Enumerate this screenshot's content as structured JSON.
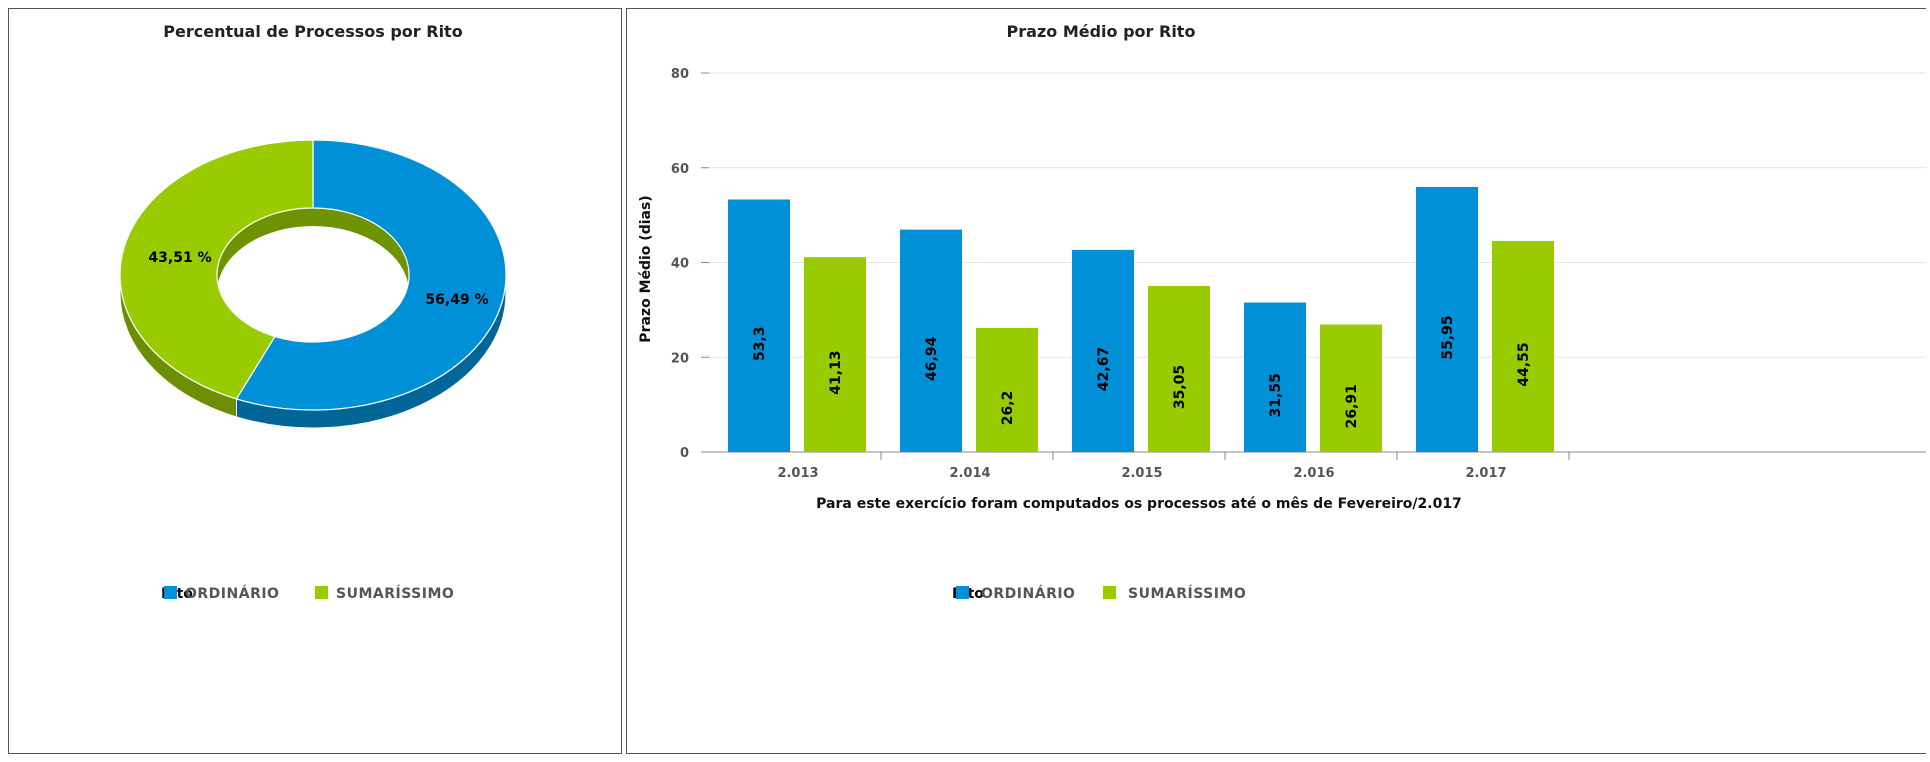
{
  "colors": {
    "ordinario": "#0090d8",
    "sumarissimo": "#99cc00"
  },
  "legend": {
    "title": "Rito",
    "items": [
      {
        "label": "ORDINÁRIO",
        "color": "#0090d8"
      },
      {
        "label": "SUMARÍSSIMO",
        "color": "#99cc00"
      }
    ]
  },
  "chart_data": [
    {
      "type": "pie",
      "title": "Percentual de Processos por Rito",
      "style": "3d-donut",
      "slices": [
        {
          "name": "ORDINÁRIO",
          "value": 56.49,
          "label": "56,49 %",
          "color": "#0090d8"
        },
        {
          "name": "SUMARÍSSIMO",
          "value": 43.51,
          "label": "43,51 %",
          "color": "#99cc00"
        }
      ],
      "legend_placement": "bottom-left"
    },
    {
      "type": "bar",
      "title": "Prazo Médio por Rito",
      "categories": [
        "2.013",
        "2.014",
        "2.015",
        "2.016",
        "2.017"
      ],
      "series": [
        {
          "name": "ORDINÁRIO",
          "color": "#0090d8",
          "values": [
            53.3,
            46.94,
            42.67,
            31.55,
            55.95
          ],
          "labels": [
            "53,3",
            "46,94",
            "42,67",
            "31,55",
            "55,95"
          ]
        },
        {
          "name": "SUMARÍSSIMO",
          "color": "#99cc00",
          "values": [
            41.13,
            26.2,
            35.05,
            26.91,
            44.55
          ],
          "labels": [
            "41,13",
            "26,2",
            "35,05",
            "26,91",
            "44,55"
          ]
        }
      ],
      "ylabel": "Prazo Médio (dias)",
      "xlabel": "Para este exercício foram computados os processos até o mês de Fevereiro/2.017",
      "ylim": [
        0,
        80
      ],
      "yticks": [
        0,
        20,
        40,
        60,
        80
      ],
      "grid": true,
      "legend_placement": "bottom-left"
    }
  ]
}
